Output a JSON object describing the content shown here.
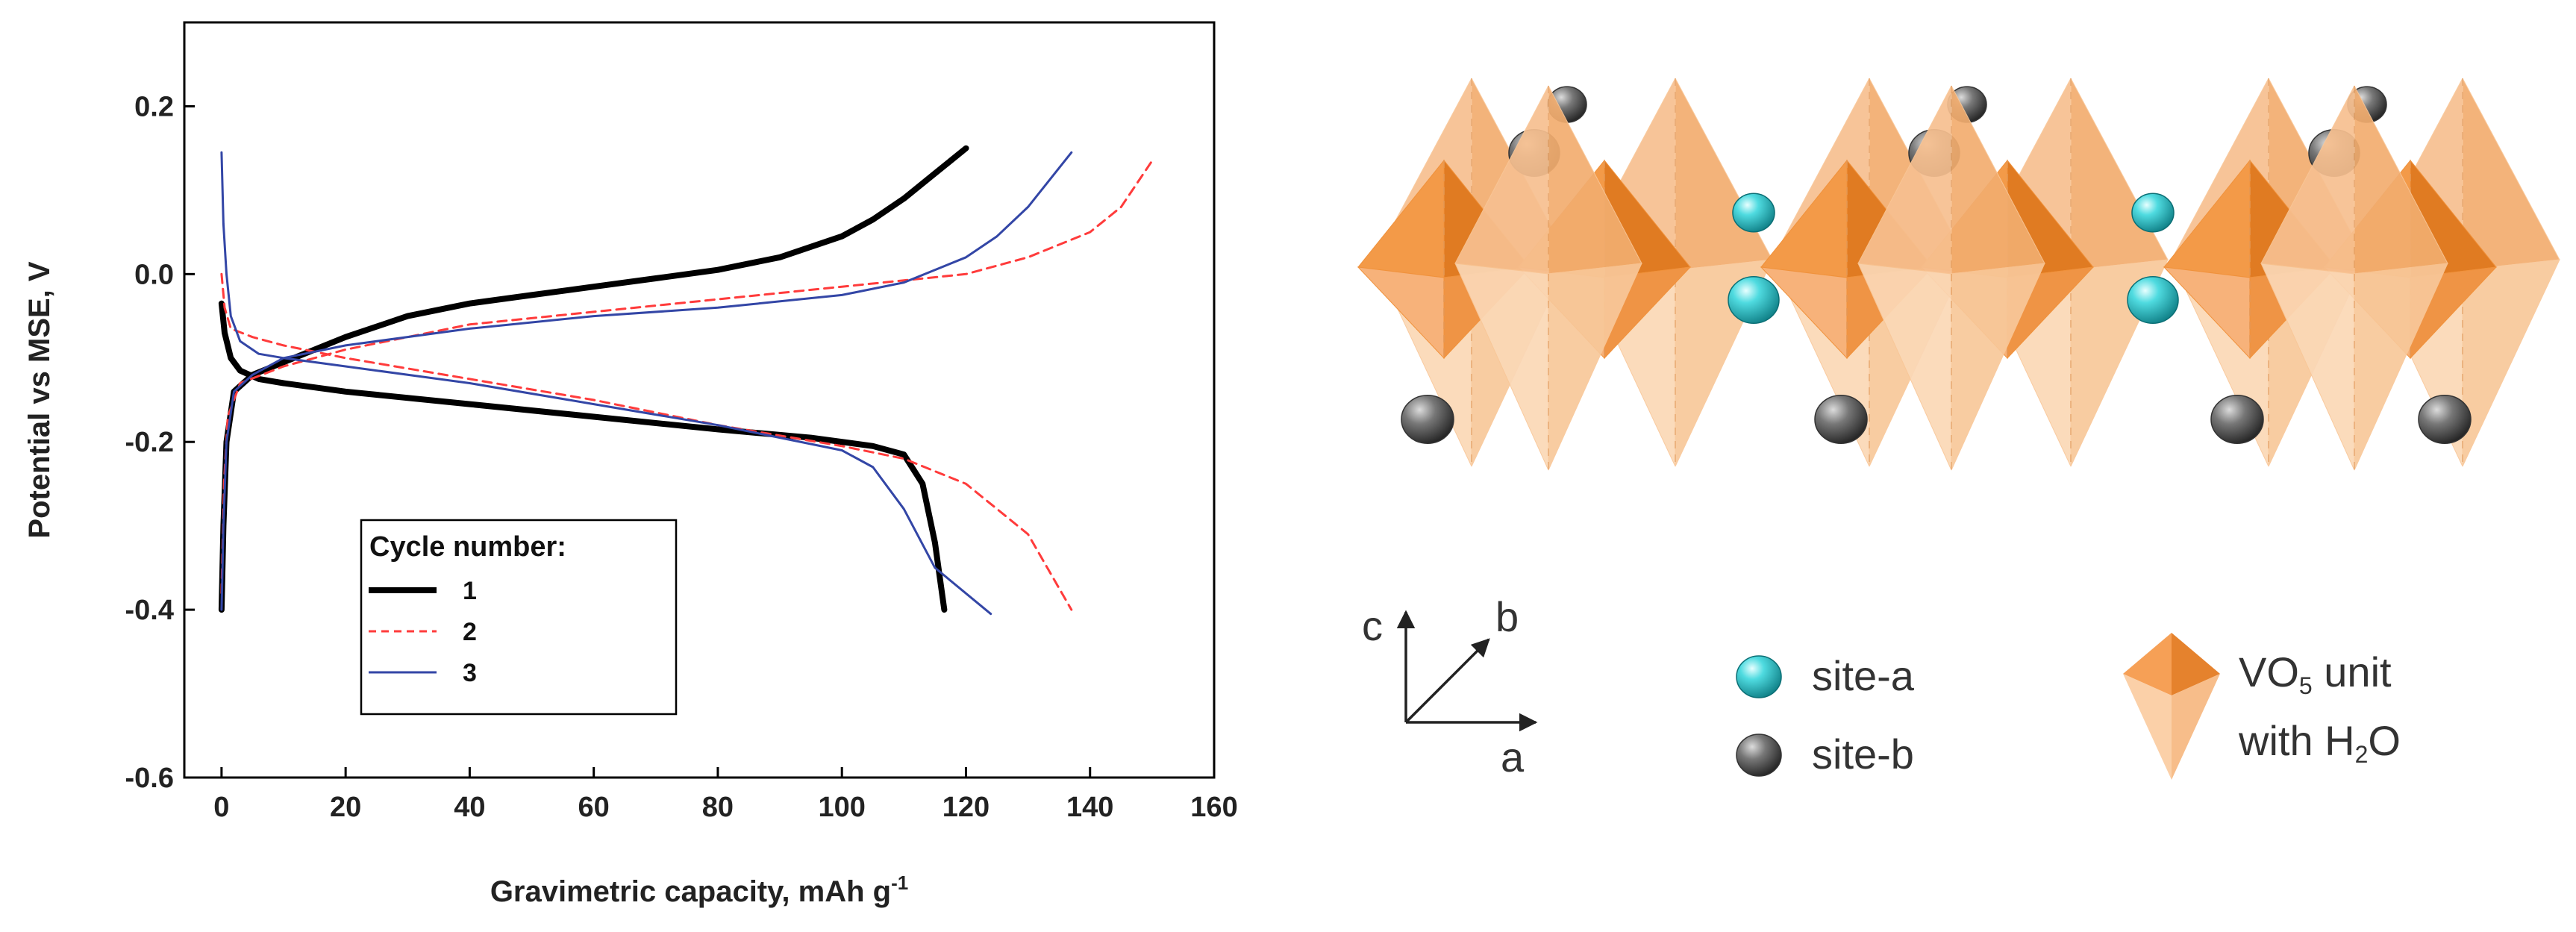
{
  "chart_data": {
    "type": "line",
    "xlabel_main": "Gravimetric capacity, mAh g",
    "xlabel_sup": "-1",
    "ylabel": "Potential vs MSE, V",
    "xlim": [
      -6,
      160
    ],
    "ylim": [
      -0.6,
      0.3
    ],
    "xticks": [
      0,
      20,
      40,
      60,
      80,
      100,
      120,
      140,
      160
    ],
    "xtick_labels": [
      "0",
      "20",
      "40",
      "60",
      "80",
      "100",
      "120",
      "140",
      "160"
    ],
    "yticks": [
      0.2,
      0.0,
      -0.2,
      -0.4,
      -0.6
    ],
    "ytick_labels": [
      "0.2",
      "0.0",
      "-0.2",
      "-0.4",
      "-0.6"
    ],
    "legend_title": "Cycle number:",
    "legend_position": "bottom-center",
    "series": [
      {
        "name": "1",
        "color": "#000000",
        "dash": "solid",
        "weight": "thick",
        "charge": [
          [
            0,
            -0.4
          ],
          [
            0.3,
            -0.3
          ],
          [
            0.8,
            -0.2
          ],
          [
            2,
            -0.14
          ],
          [
            5,
            -0.12
          ],
          [
            10,
            -0.105
          ],
          [
            20,
            -0.075
          ],
          [
            30,
            -0.05
          ],
          [
            40,
            -0.035
          ],
          [
            50,
            -0.025
          ],
          [
            60,
            -0.015
          ],
          [
            70,
            -0.005
          ],
          [
            80,
            0.005
          ],
          [
            90,
            0.02
          ],
          [
            100,
            0.045
          ],
          [
            105,
            0.065
          ],
          [
            110,
            0.09
          ],
          [
            115,
            0.12
          ],
          [
            120,
            0.15
          ]
        ],
        "discharge": [
          [
            0,
            -0.035
          ],
          [
            0.5,
            -0.07
          ],
          [
            1.5,
            -0.1
          ],
          [
            3,
            -0.115
          ],
          [
            6,
            -0.125
          ],
          [
            10,
            -0.13
          ],
          [
            20,
            -0.14
          ],
          [
            40,
            -0.155
          ],
          [
            60,
            -0.17
          ],
          [
            80,
            -0.185
          ],
          [
            95,
            -0.195
          ],
          [
            105,
            -0.205
          ],
          [
            110,
            -0.215
          ],
          [
            113,
            -0.25
          ],
          [
            115,
            -0.32
          ],
          [
            116.5,
            -0.4
          ]
        ]
      },
      {
        "name": "2",
        "color": "#ff3b3b",
        "dash": "dashed",
        "weight": "normal",
        "charge": [
          [
            0,
            -0.38
          ],
          [
            0.4,
            -0.25
          ],
          [
            1,
            -0.17
          ],
          [
            3,
            -0.13
          ],
          [
            10,
            -0.11
          ],
          [
            20,
            -0.09
          ],
          [
            40,
            -0.06
          ],
          [
            60,
            -0.045
          ],
          [
            80,
            -0.03
          ],
          [
            100,
            -0.015
          ],
          [
            120,
            0.0
          ],
          [
            130,
            0.02
          ],
          [
            140,
            0.05
          ],
          [
            145,
            0.08
          ],
          [
            150,
            0.135
          ]
        ],
        "discharge": [
          [
            0,
            0.0
          ],
          [
            0.5,
            -0.04
          ],
          [
            1.5,
            -0.065
          ],
          [
            5,
            -0.075
          ],
          [
            10,
            -0.085
          ],
          [
            20,
            -0.1
          ],
          [
            40,
            -0.125
          ],
          [
            60,
            -0.15
          ],
          [
            80,
            -0.18
          ],
          [
            100,
            -0.205
          ],
          [
            110,
            -0.22
          ],
          [
            120,
            -0.25
          ],
          [
            130,
            -0.31
          ],
          [
            137,
            -0.4
          ]
        ]
      },
      {
        "name": "3",
        "color": "#3346a6",
        "dash": "solid",
        "weight": "normal",
        "charge": [
          [
            0,
            -0.4
          ],
          [
            0.3,
            -0.3
          ],
          [
            0.8,
            -0.2
          ],
          [
            2,
            -0.14
          ],
          [
            5,
            -0.12
          ],
          [
            10,
            -0.1
          ],
          [
            20,
            -0.085
          ],
          [
            40,
            -0.065
          ],
          [
            60,
            -0.05
          ],
          [
            80,
            -0.04
          ],
          [
            100,
            -0.025
          ],
          [
            110,
            -0.01
          ],
          [
            120,
            0.02
          ],
          [
            125,
            0.045
          ],
          [
            130,
            0.08
          ],
          [
            137,
            0.145
          ]
        ],
        "discharge": [
          [
            0,
            0.145
          ],
          [
            0.3,
            0.06
          ],
          [
            0.8,
            0.0
          ],
          [
            1.5,
            -0.05
          ],
          [
            3,
            -0.08
          ],
          [
            6,
            -0.095
          ],
          [
            10,
            -0.1
          ],
          [
            20,
            -0.11
          ],
          [
            40,
            -0.13
          ],
          [
            60,
            -0.155
          ],
          [
            80,
            -0.18
          ],
          [
            100,
            -0.21
          ],
          [
            105,
            -0.23
          ],
          [
            110,
            -0.28
          ],
          [
            115,
            -0.35
          ],
          [
            124,
            -0.405
          ]
        ]
      }
    ]
  },
  "diagram": {
    "axes": {
      "c": "c",
      "b": "b",
      "a": "a"
    },
    "legend": {
      "site_a": "site-a",
      "site_b": "site-b",
      "vo_prefix": "VO",
      "vo_sub": "5",
      "vo_suffix": " unit",
      "h2o_prefix": "with H",
      "h2o_sub": "2",
      "h2o_suffix": "O"
    },
    "colors": {
      "octa_dark": "#f0923c",
      "octa_light": "#f9c798",
      "site_a": "#27c3c9",
      "site_b": "#707070"
    }
  }
}
